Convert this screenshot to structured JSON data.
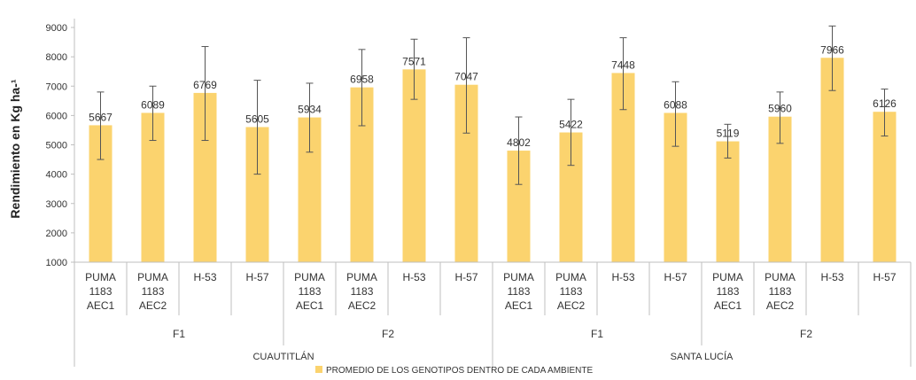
{
  "chart_data": {
    "type": "bar",
    "ylabel": "Rendimiento en Kg ha-¹",
    "ylim": [
      1000,
      9000
    ],
    "yticks": [
      1000,
      2000,
      3000,
      4000,
      5000,
      6000,
      7000,
      8000,
      9000
    ],
    "grid": false,
    "legend_position": "bottom",
    "series": [
      {
        "name": "PROMEDIO DE LOS GENOTIPOS DENTRO DE CADA AMBIENTE",
        "color": "#fbd36e",
        "values": [
          5667,
          6089,
          6769,
          5605,
          5934,
          6958,
          7571,
          7047,
          4802,
          5422,
          7448,
          6088,
          5119,
          5960,
          7966,
          6126
        ],
        "error_low": [
          4500,
          5150,
          5150,
          4000,
          4750,
          5650,
          6550,
          5400,
          3650,
          4300,
          6200,
          4950,
          4550,
          5050,
          6850,
          5300
        ],
        "error_high": [
          6800,
          7000,
          8350,
          7200,
          7100,
          8250,
          8600,
          8650,
          5950,
          6550,
          8650,
          7150,
          5700,
          6800,
          9050,
          6900
        ]
      }
    ],
    "categories": [
      {
        "lines": [
          "PUMA",
          "1183",
          "AEC1"
        ]
      },
      {
        "lines": [
          "PUMA",
          "1183",
          "AEC2"
        ]
      },
      {
        "lines": [
          "H-53"
        ]
      },
      {
        "lines": [
          "H-57"
        ]
      },
      {
        "lines": [
          "PUMA",
          "1183",
          "AEC1"
        ]
      },
      {
        "lines": [
          "PUMA",
          "1183",
          "AEC2"
        ]
      },
      {
        "lines": [
          "H-53"
        ]
      },
      {
        "lines": [
          "H-57"
        ]
      },
      {
        "lines": [
          "PUMA",
          "1183",
          "AEC1"
        ]
      },
      {
        "lines": [
          "PUMA",
          "1183",
          "AEC2"
        ]
      },
      {
        "lines": [
          "H-53"
        ]
      },
      {
        "lines": [
          "H-57"
        ]
      },
      {
        "lines": [
          "PUMA",
          "1183",
          "AEC1"
        ]
      },
      {
        "lines": [
          "PUMA",
          "1183",
          "AEC2"
        ]
      },
      {
        "lines": [
          "H-53"
        ]
      },
      {
        "lines": [
          "H-57"
        ]
      }
    ],
    "level2_groups": [
      "F1",
      "F2",
      "F1",
      "F2"
    ],
    "level3_groups": [
      "CUAUTITLÁN",
      "SANTA LUCÍA"
    ]
  }
}
